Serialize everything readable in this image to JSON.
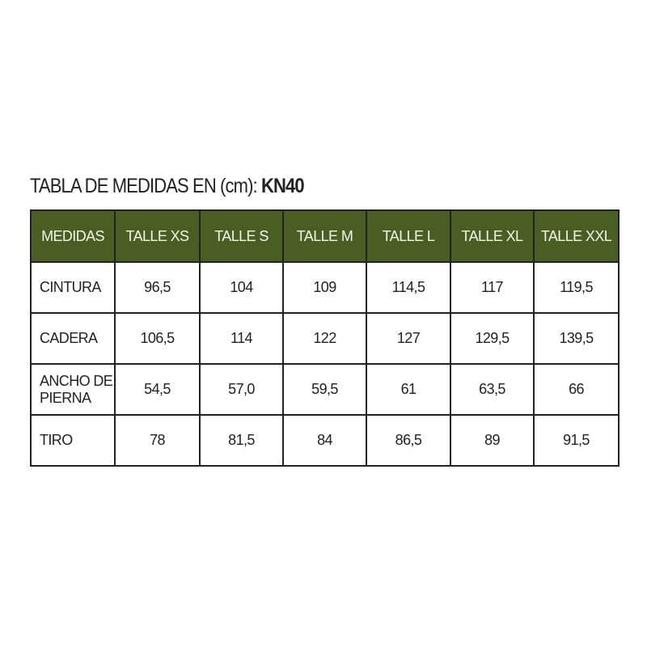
{
  "title": {
    "prefix": "TABLA DE MEDIDAS EN (cm): ",
    "code": "KN40"
  },
  "header_color": "#4a5e23",
  "columns": [
    "MEDIDAS",
    "TALLE XS",
    "TALLE S",
    "TALLE M",
    "TALLE L",
    "TALLE XL",
    "TALLE XXL"
  ],
  "rows": [
    {
      "label": "CINTURA",
      "values": [
        "96,5",
        "104",
        "109",
        "114,5",
        "117",
        "119,5"
      ]
    },
    {
      "label": "CADERA",
      "values": [
        "106,5",
        "114",
        "122",
        "127",
        "129,5",
        "139,5"
      ]
    },
    {
      "label": "ANCHO DE PIERNA",
      "values": [
        "54,5",
        "57,0",
        "59,5",
        "61",
        "63,5",
        "66"
      ]
    },
    {
      "label": "TIRO",
      "values": [
        "78",
        "81,5",
        "84",
        "86,5",
        "89",
        "91,5"
      ]
    }
  ]
}
